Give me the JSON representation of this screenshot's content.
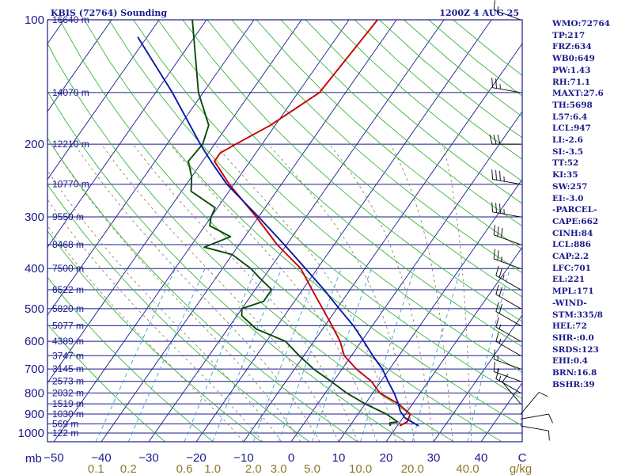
{
  "header": {
    "station": "KBIS (72764) Sounding",
    "time": "1200Z  4 AUG 25"
  },
  "stats": [
    "WMO:72764",
    "TP:217",
    "FRZ:634",
    "WB0:649",
    "PW:1.43",
    "RH:71.1",
    "MAXT:27.6",
    "TH:5698",
    "L57:6.4",
    "LCL:947",
    "LI:-2.6",
    "SI:-3.5",
    "TT:52",
    "KI:35",
    "SW:257",
    "EI:-3.0",
    "-PARCEL-",
    "CAPE:662",
    "CINH:84",
    "LCL:886",
    "CAP:2.2",
    "LFC:701",
    "EL:221",
    "MPL:171",
    "-WIND-",
    "STM:335/8",
    "HEL:72",
    "SHR-:0.0",
    "SRDS:123",
    "EHI:0.4",
    "BRN:16.8",
    "BSHR:39"
  ],
  "chart_data": {
    "type": "line",
    "title": "KBIS (72764) Sounding",
    "pressure_unit_label": "mb",
    "temperature_unit_label": "C",
    "mixing_ratio_unit_label": "g/kg",
    "pressure_ticks": [
      100,
      200,
      300,
      400,
      500,
      600,
      700,
      800,
      900,
      1000
    ],
    "temperature_ticks": [
      -50,
      -40,
      -30,
      -20,
      -10,
      0,
      10,
      20,
      30,
      40
    ],
    "mixing_ratio_ticks": [
      "0.1",
      "0.2",
      "0.6",
      "1.0",
      "2.0",
      "3.0",
      "5.0",
      "10.0",
      "20.0",
      "40.0"
    ],
    "height_labels": [
      {
        "p": 100,
        "label": "16640 m"
      },
      {
        "p": 150,
        "label": "14070 m"
      },
      {
        "p": 200,
        "label": "12210 m"
      },
      {
        "p": 250,
        "label": "10770 m"
      },
      {
        "p": 300,
        "label": "9550 m"
      },
      {
        "p": 350,
        "label": "8468 m"
      },
      {
        "p": 400,
        "label": "7500 m"
      },
      {
        "p": 450,
        "label": "6522 m"
      },
      {
        "p": 500,
        "label": "5820 m"
      },
      {
        "p": 550,
        "label": "5077 m"
      },
      {
        "p": 600,
        "label": "4389 m"
      },
      {
        "p": 650,
        "label": "3747 m"
      },
      {
        "p": 700,
        "label": "3145 m"
      },
      {
        "p": 750,
        "label": "2573 m"
      },
      {
        "p": 800,
        "label": "2032 m"
      },
      {
        "p": 850,
        "label": "1519 m"
      },
      {
        "p": 900,
        "label": "1030 m"
      },
      {
        "p": 950,
        "label": "569 m"
      },
      {
        "p": 1000,
        "label": "122 m"
      }
    ],
    "series": [
      {
        "role": "temperature",
        "color": "#c80000",
        "points": [
          {
            "p": 961,
            "t": 20.5
          },
          {
            "p": 940,
            "t": 21.5
          },
          {
            "p": 900,
            "t": 21.0
          },
          {
            "p": 850,
            "t": 17.0
          },
          {
            "p": 800,
            "t": 11.5
          },
          {
            "p": 750,
            "t": 8.0
          },
          {
            "p": 700,
            "t": 3.0
          },
          {
            "p": 650,
            "t": -1.5
          },
          {
            "p": 600,
            "t": -4.5
          },
          {
            "p": 550,
            "t": -8.5
          },
          {
            "p": 500,
            "t": -13.0
          },
          {
            "p": 450,
            "t": -18.0
          },
          {
            "p": 400,
            "t": -23.5
          },
          {
            "p": 350,
            "t": -32.0
          },
          {
            "p": 300,
            "t": -40.5
          },
          {
            "p": 250,
            "t": -51.0
          },
          {
            "p": 220,
            "t": -57.5
          },
          {
            "p": 210,
            "t": -57.5
          },
          {
            "p": 200,
            "t": -55.5
          },
          {
            "p": 180,
            "t": -51.0
          },
          {
            "p": 150,
            "t": -45.5
          },
          {
            "p": 100,
            "t": -44.0
          }
        ]
      },
      {
        "role": "dewpoint",
        "color": "#0a4a0a",
        "points": [
          {
            "p": 961,
            "t": 18.5
          },
          {
            "p": 945,
            "t": 18.0
          },
          {
            "p": 940,
            "t": 19.5
          },
          {
            "p": 900,
            "t": 16.0
          },
          {
            "p": 850,
            "t": 10.0
          },
          {
            "p": 800,
            "t": 4.5
          },
          {
            "p": 750,
            "t": -0.5
          },
          {
            "p": 700,
            "t": -6.0
          },
          {
            "p": 650,
            "t": -11.0
          },
          {
            "p": 600,
            "t": -16.0
          },
          {
            "p": 560,
            "t": -24.0
          },
          {
            "p": 520,
            "t": -29.0
          },
          {
            "p": 500,
            "t": -30.0
          },
          {
            "p": 480,
            "t": -26.5
          },
          {
            "p": 450,
            "t": -26.5
          },
          {
            "p": 420,
            "t": -31.0
          },
          {
            "p": 400,
            "t": -34.0
          },
          {
            "p": 370,
            "t": -40.0
          },
          {
            "p": 355,
            "t": -47.0
          },
          {
            "p": 335,
            "t": -43.0
          },
          {
            "p": 315,
            "t": -49.0
          },
          {
            "p": 300,
            "t": -50.0
          },
          {
            "p": 285,
            "t": -50.5
          },
          {
            "p": 260,
            "t": -58.0
          },
          {
            "p": 240,
            "t": -60.0
          },
          {
            "p": 220,
            "t": -63.0
          },
          {
            "p": 200,
            "t": -62.5
          },
          {
            "p": 180,
            "t": -64.0
          },
          {
            "p": 150,
            "t": -71.0
          },
          {
            "p": 100,
            "t": -83.0
          }
        ]
      },
      {
        "role": "parcel",
        "color": "#0a1aa8",
        "points": [
          {
            "p": 961,
            "t": 24.5
          },
          {
            "p": 920,
            "t": 20.5
          },
          {
            "p": 886,
            "t": 18.5
          },
          {
            "p": 850,
            "t": 17.0
          },
          {
            "p": 800,
            "t": 14.5
          },
          {
            "p": 750,
            "t": 11.5
          },
          {
            "p": 700,
            "t": 8.5
          },
          {
            "p": 650,
            "t": 4.5
          },
          {
            "p": 600,
            "t": 0.5
          },
          {
            "p": 550,
            "t": -4.0
          },
          {
            "p": 500,
            "t": -9.5
          },
          {
            "p": 450,
            "t": -15.5
          },
          {
            "p": 400,
            "t": -22.5
          },
          {
            "p": 350,
            "t": -30.5
          },
          {
            "p": 300,
            "t": -40.0
          },
          {
            "p": 250,
            "t": -51.5
          },
          {
            "p": 221,
            "t": -58.0
          },
          {
            "p": 200,
            "t": -63.0
          },
          {
            "p": 150,
            "t": -76.5
          },
          {
            "p": 110,
            "t": -92.0
          }
        ]
      }
    ],
    "wind_barbs": [
      {
        "p": 961,
        "dir": 100,
        "spd": 10
      },
      {
        "p": 925,
        "dir": 80,
        "spd": 10
      },
      {
        "p": 900,
        "dir": 40,
        "spd": 10
      },
      {
        "p": 850,
        "dir": 320,
        "spd": 10
      },
      {
        "p": 800,
        "dir": 300,
        "spd": 15
      },
      {
        "p": 750,
        "dir": 290,
        "spd": 15
      },
      {
        "p": 700,
        "dir": 290,
        "spd": 15
      },
      {
        "p": 650,
        "dir": 300,
        "spd": 15
      },
      {
        "p": 600,
        "dir": 300,
        "spd": 15
      },
      {
        "p": 550,
        "dir": 300,
        "spd": 20
      },
      {
        "p": 500,
        "dir": 300,
        "spd": 20
      },
      {
        "p": 450,
        "dir": 300,
        "spd": 25
      },
      {
        "p": 400,
        "dir": 290,
        "spd": 25
      },
      {
        "p": 350,
        "dir": 290,
        "spd": 30
      },
      {
        "p": 300,
        "dir": 280,
        "spd": 35
      },
      {
        "p": 250,
        "dir": 280,
        "spd": 35
      },
      {
        "p": 200,
        "dir": 270,
        "spd": 30
      },
      {
        "p": 150,
        "dir": 280,
        "spd": 25
      },
      {
        "p": 100,
        "dir": 290,
        "spd": 15
      }
    ],
    "colors": {
      "frame": "#1a1a8c",
      "isobar": "#1a1a8c",
      "isotherm": "#1a1a8c",
      "dry_adiabat": "#3cb43c",
      "moist_adiabat": "#7a7a55",
      "mixing_ratio": "#3aa0d0",
      "mixing_ratio_label": "#8c7a2a"
    }
  }
}
